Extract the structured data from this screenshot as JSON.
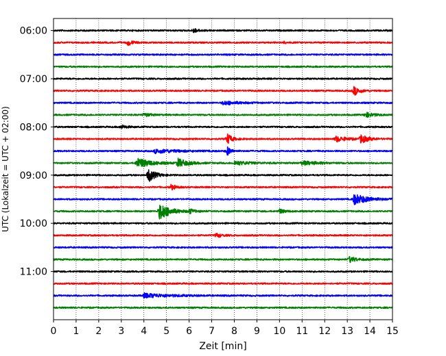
{
  "chart_data": {
    "type": "line",
    "xlabel": "Zeit  [min]",
    "ylabel": "UTC (Lokalzeit = UTC + 02:00)",
    "xlim": [
      0,
      15
    ],
    "xticks": [
      "0",
      "1",
      "2",
      "3",
      "4",
      "5",
      "6",
      "7",
      "8",
      "9",
      "10",
      "11",
      "12",
      "13",
      "14",
      "15"
    ],
    "ylim_hours": [
      5.75,
      12.0
    ],
    "yticks": [
      {
        "label": "06:00",
        "hour": 6.0
      },
      {
        "label": "07:00",
        "hour": 7.0
      },
      {
        "label": "08:00",
        "hour": 8.0
      },
      {
        "label": "09:00",
        "hour": 9.0
      },
      {
        "label": "10:00",
        "hour": 10.0
      },
      {
        "label": "11:00",
        "hour": 11.0
      }
    ],
    "grid": "vertical-dotted",
    "colors": [
      "#000000",
      "#ff0000",
      "#0000ff",
      "#008000"
    ],
    "traces": [
      {
        "start": "06:00",
        "color": "#000000",
        "events": [
          {
            "t": 6.2,
            "amp": 1.6,
            "dur": 0.4
          }
        ]
      },
      {
        "start": "06:15",
        "color": "#ff0000",
        "events": [
          {
            "t": 3.3,
            "amp": 2.0,
            "dur": 0.4
          },
          {
            "t": 10.2,
            "amp": 0.6,
            "dur": 0.3
          }
        ]
      },
      {
        "start": "06:30",
        "color": "#0000ff",
        "events": []
      },
      {
        "start": "06:45",
        "color": "#008000",
        "events": []
      },
      {
        "start": "07:00",
        "color": "#000000",
        "events": []
      },
      {
        "start": "07:15",
        "color": "#ff0000",
        "events": [
          {
            "t": 13.3,
            "amp": 3.0,
            "dur": 0.5
          }
        ]
      },
      {
        "start": "07:30",
        "color": "#0000ff",
        "events": [
          {
            "t": 7.5,
            "amp": 1.2,
            "dur": 1.5
          }
        ]
      },
      {
        "start": "07:45",
        "color": "#008000",
        "events": [
          {
            "t": 4.0,
            "amp": 1.2,
            "dur": 0.6
          },
          {
            "t": 13.8,
            "amp": 1.6,
            "dur": 0.8
          }
        ]
      },
      {
        "start": "08:00",
        "color": "#000000",
        "events": [
          {
            "t": 3.0,
            "amp": 1.2,
            "dur": 0.5
          }
        ]
      },
      {
        "start": "08:15",
        "color": "#ff0000",
        "events": [
          {
            "t": 7.7,
            "amp": 3.5,
            "dur": 0.4
          },
          {
            "t": 12.5,
            "amp": 1.8,
            "dur": 1.0
          },
          {
            "t": 13.6,
            "amp": 2.6,
            "dur": 0.7
          }
        ]
      },
      {
        "start": "08:30",
        "color": "#0000ff",
        "events": [
          {
            "t": 4.5,
            "amp": 1.4,
            "dur": 2.0
          },
          {
            "t": 7.7,
            "amp": 3.0,
            "dur": 0.3
          }
        ]
      },
      {
        "start": "08:45",
        "color": "#008000",
        "events": [
          {
            "t": 3.7,
            "amp": 3.5,
            "dur": 1.2
          },
          {
            "t": 5.5,
            "amp": 2.8,
            "dur": 0.9
          },
          {
            "t": 8.0,
            "amp": 1.3,
            "dur": 1.5
          },
          {
            "t": 11.0,
            "amp": 1.3,
            "dur": 1.5
          }
        ]
      },
      {
        "start": "09:00",
        "color": "#000000",
        "events": [
          {
            "t": 4.2,
            "amp": 4.5,
            "dur": 0.6
          }
        ]
      },
      {
        "start": "09:15",
        "color": "#ff0000",
        "events": [
          {
            "t": 5.2,
            "amp": 1.8,
            "dur": 0.4
          }
        ]
      },
      {
        "start": "09:30",
        "color": "#0000ff",
        "events": [
          {
            "t": 13.3,
            "amp": 3.5,
            "dur": 1.3
          }
        ]
      },
      {
        "start": "09:45",
        "color": "#008000",
        "events": [
          {
            "t": 4.7,
            "amp": 6.0,
            "dur": 0.9
          },
          {
            "t": 6.0,
            "amp": 1.4,
            "dur": 0.5
          },
          {
            "t": 10.0,
            "amp": 1.4,
            "dur": 0.5
          }
        ]
      },
      {
        "start": "10:00",
        "color": "#000000",
        "events": []
      },
      {
        "start": "10:15",
        "color": "#ff0000",
        "events": [
          {
            "t": 7.2,
            "amp": 1.4,
            "dur": 0.5
          }
        ]
      },
      {
        "start": "10:30",
        "color": "#0000ff",
        "events": []
      },
      {
        "start": "10:45",
        "color": "#008000",
        "events": [
          {
            "t": 13.1,
            "amp": 2.0,
            "dur": 0.6
          }
        ]
      },
      {
        "start": "11:00",
        "color": "#000000",
        "events": []
      },
      {
        "start": "11:15",
        "color": "#ff0000",
        "events": []
      },
      {
        "start": "11:30",
        "color": "#0000ff",
        "events": [
          {
            "t": 4.0,
            "amp": 1.4,
            "dur": 2.5
          }
        ]
      },
      {
        "start": "11:45",
        "color": "#008000",
        "events": []
      }
    ]
  }
}
